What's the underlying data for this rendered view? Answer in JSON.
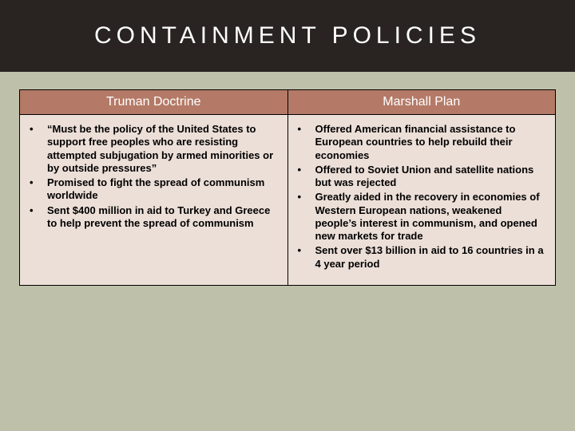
{
  "colors": {
    "title_bg": "#292421",
    "title_fg": "#ffffff",
    "slide_bg": "#bfc0a9",
    "header_bg": "#b47a67",
    "header_fg": "#ffffff",
    "cell_bg": "#ecdfd8",
    "cell_fg": "#000000",
    "border": "#000000"
  },
  "typography": {
    "title_fontsize": 30,
    "header_fontsize": 16,
    "body_fontsize": 13
  },
  "title": "CONTAINMENT POLICIES",
  "columns": {
    "left": {
      "header": "Truman Doctrine",
      "items": [
        "“Must be the policy of the United States to support free peoples who are resisting attempted subjugation by armed minorities or by outside pressures”",
        "Promised to fight the spread of communism worldwide",
        "Sent $400 million in aid to Turkey and Greece to help prevent the spread of communism"
      ]
    },
    "right": {
      "header": "Marshall Plan",
      "items": [
        "Offered American financial assistance to European countries to help rebuild their economies",
        "Offered to Soviet Union and satellite nations but was rejected",
        "Greatly aided in the recovery in economies of Western European nations, weakened people’s interest in communism, and opened new markets for trade",
        "Sent over $13 billion in aid to 16 countries in a 4 year period"
      ]
    }
  }
}
